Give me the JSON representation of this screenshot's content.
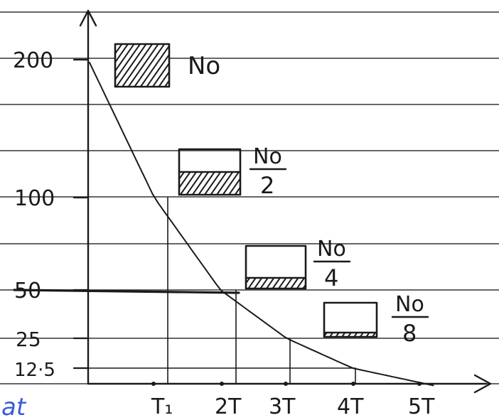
{
  "chart_data": {
    "type": "line",
    "title": "",
    "xlabel": "",
    "ylabel": "",
    "x_ticks": [
      "T₁",
      "2T",
      "3T",
      "4T",
      "5T"
    ],
    "y_ticks": [
      "200",
      "100",
      "50",
      "25",
      "12·5"
    ],
    "series": [
      {
        "values": [
          200,
          100,
          50,
          25,
          12.5,
          6.25
        ],
        "x": [
          0,
          1,
          2,
          3,
          4,
          5
        ]
      }
    ],
    "ylim": [
      0,
      220
    ],
    "xlim": [
      0,
      5.4
    ],
    "grid": "ruled notebook lines",
    "annotations": [
      {
        "x": 0,
        "y": 200,
        "label": "No",
        "fraction": 1
      },
      {
        "x": 1,
        "y": 100,
        "label_num": "No",
        "label_den": "2",
        "fraction": 0.5
      },
      {
        "x": 2,
        "y": 50,
        "label_num": "No",
        "label_den": "4",
        "fraction": 0.25
      },
      {
        "x": 3,
        "y": 25,
        "label_num": "No",
        "label_den": "8",
        "fraction": 0.125
      }
    ],
    "colors": {
      "ink": "#1a1a1a",
      "paper": "#ffffff",
      "lines": "#333333"
    }
  }
}
